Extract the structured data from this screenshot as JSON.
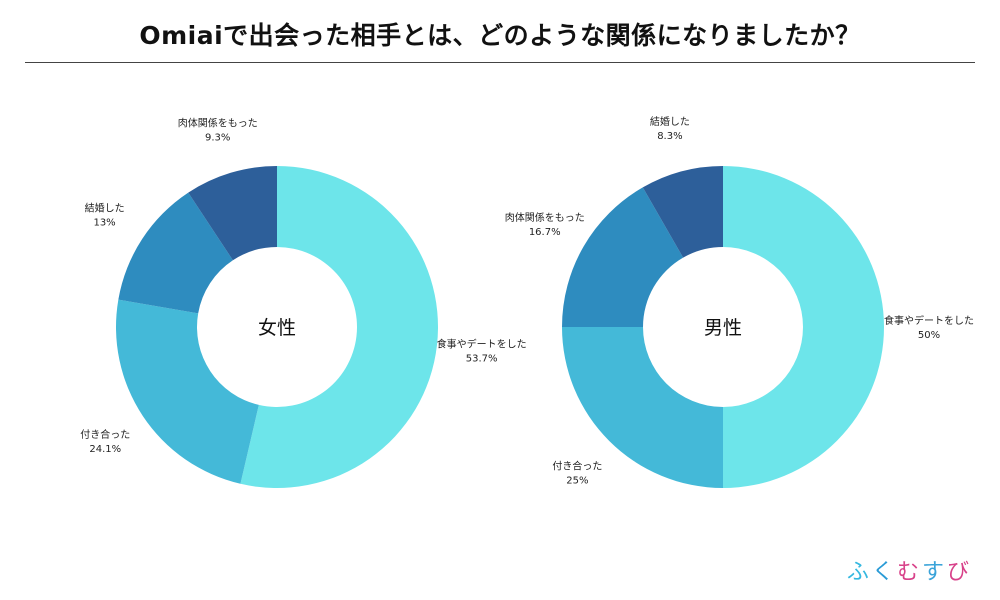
{
  "title": "Omiaiで出会った相手とは、どのような関係になりましたか？",
  "logo_chars": [
    "ふ",
    "く",
    "む",
    "す",
    "び"
  ],
  "colors": {
    "meal": "#6de5ea",
    "dating": "#44b9d8",
    "married": "#2e8cbf",
    "physical": "#2d5f9a"
  },
  "chart_data": [
    {
      "type": "pie",
      "center_label": "女性",
      "slices": [
        {
          "label": "食事やデートをした",
          "value": 53.7,
          "value_label": "53.7%",
          "color_key": "meal"
        },
        {
          "label": "付き合った",
          "value": 24.1,
          "value_label": "24.1%",
          "color_key": "dating"
        },
        {
          "label": "結婚した",
          "value": 13,
          "value_label": "13%",
          "color_key": "married"
        },
        {
          "label": "肉体関係をもった",
          "value": 9.3,
          "value_label": "9.3%",
          "color_key": "physical"
        }
      ]
    },
    {
      "type": "pie",
      "center_label": "男性",
      "slices": [
        {
          "label": "食事やデートをした",
          "value": 50,
          "value_label": "50%",
          "color_key": "meal"
        },
        {
          "label": "付き合った",
          "value": 25,
          "value_label": "25%",
          "color_key": "dating"
        },
        {
          "label": "肉体関係をもった",
          "value": 16.7,
          "value_label": "16.7%",
          "color_key": "married"
        },
        {
          "label": "結婚した",
          "value": 8.3,
          "value_label": "8.3%",
          "color_key": "physical"
        }
      ]
    }
  ]
}
